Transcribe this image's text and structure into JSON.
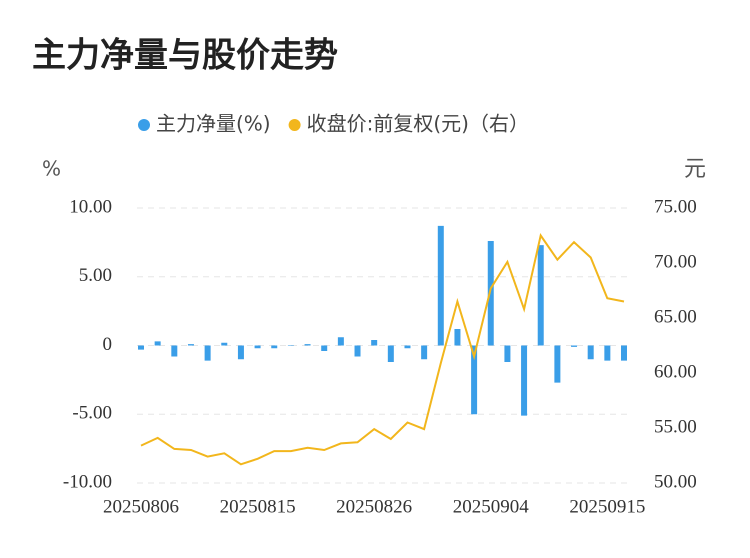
{
  "chart_data": {
    "type": "bar_line",
    "title": "主力净量与股价走势",
    "y_label": "%",
    "y2_label": "元",
    "categories": [
      "20250806",
      null,
      null,
      null,
      null,
      null,
      null,
      "20250815",
      null,
      null,
      null,
      null,
      null,
      null,
      "20250826",
      null,
      null,
      null,
      null,
      null,
      null,
      "20250904",
      null,
      null,
      null,
      null,
      null,
      null,
      "20250915",
      null
    ],
    "series": [
      {
        "name": "主力净量(%)",
        "type": "bar",
        "color": "#3a9ee8",
        "values": [
          -0.3,
          0.3,
          -0.8,
          0.1,
          -1.1,
          0.2,
          -1.0,
          -0.2,
          -0.2,
          0.0,
          0.1,
          -0.4,
          0.6,
          -0.8,
          0.4,
          -1.2,
          -0.2,
          -1.0,
          8.7,
          1.2,
          -5.0,
          7.6,
          -1.2,
          -5.1,
          7.3,
          -2.7,
          -0.1,
          -1.0,
          -1.1,
          -1.1
        ]
      },
      {
        "name": "收盘价:前复权(元)（右）",
        "type": "line",
        "axis": "y2",
        "color": "#f2b61c",
        "values": [
          53.4,
          54.1,
          53.1,
          53.0,
          52.4,
          52.7,
          51.7,
          52.2,
          52.9,
          52.9,
          53.2,
          53.0,
          53.6,
          53.7,
          54.9,
          54.0,
          55.5,
          54.9,
          60.9,
          66.5,
          61.5,
          67.7,
          70.1,
          65.8,
          72.5,
          70.3,
          71.9,
          70.5,
          66.8,
          66.5
        ]
      }
    ],
    "ylim": [
      -10,
      10
    ],
    "yticks": [
      {
        "value": -10,
        "label": "-10.00"
      },
      {
        "value": -5,
        "label": "-5.00"
      },
      0,
      {
        "value": 5,
        "label": "5.00"
      },
      {
        "value": 10,
        "label": "10.00"
      }
    ],
    "y2lim": [
      50,
      75
    ],
    "y2ticks": [
      {
        "value": 50,
        "label": "50.00"
      },
      {
        "value": 55,
        "label": "55.00"
      },
      {
        "value": 60,
        "label": "60.00"
      },
      {
        "value": 65,
        "label": "65.00"
      },
      {
        "value": 70,
        "label": "70.00"
      },
      {
        "value": 75,
        "label": "75.00"
      }
    ],
    "grid": true
  }
}
